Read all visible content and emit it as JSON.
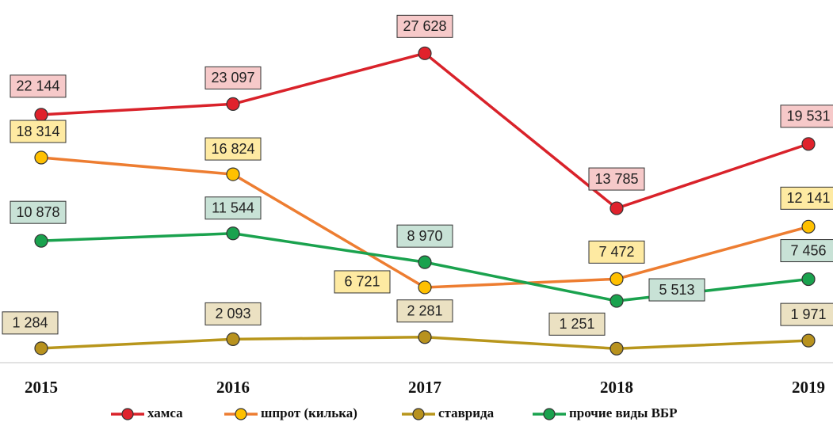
{
  "chart_data": {
    "type": "line",
    "categories": [
      "2015",
      "2016",
      "2017",
      "2018",
      "2019"
    ],
    "ylim": [
      0,
      32000
    ],
    "series": [
      {
        "name": "хамса",
        "color": "#d9222a",
        "marker_color": "#e0222c",
        "label_fill": "#f6c9c9",
        "values": [
          22144,
          23097,
          27628,
          13785,
          19531
        ],
        "value_labels": [
          "22 144",
          "23 097",
          "27 628",
          "13 785",
          "19 531"
        ]
      },
      {
        "name": "шпрот (килька)",
        "color": "#ed7d31",
        "marker_color": "#ffc000",
        "label_fill": "#feeaa2",
        "values": [
          18314,
          16824,
          6721,
          7472,
          12141
        ],
        "value_labels": [
          "18 314",
          "16 824",
          "6 721",
          "7 472",
          "12 141"
        ]
      },
      {
        "name": "ставрида",
        "color": "#b8961c",
        "marker_color": "#b8921e",
        "label_fill": "#ebe1c2",
        "values": [
          1284,
          2093,
          2281,
          1251,
          1971
        ],
        "value_labels": [
          "1 284",
          "2 093",
          "2 281",
          "1 251",
          "1 971"
        ]
      },
      {
        "name": "прочие виды ВБР",
        "color": "#1aa24e",
        "marker_color": "#1aa24e",
        "label_fill": "#c8e2d6",
        "values": [
          10878,
          11544,
          8970,
          5513,
          7456
        ],
        "value_labels": [
          "10 878",
          "11 544",
          "8 970",
          "5 513",
          "7 456"
        ]
      }
    ]
  }
}
